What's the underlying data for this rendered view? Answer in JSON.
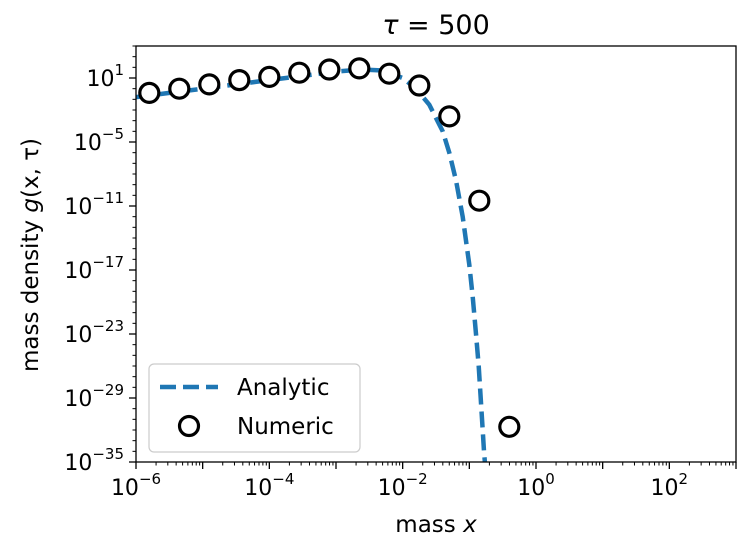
{
  "chart_data": {
    "type": "line",
    "title": {
      "symbol": "τ",
      "text": " = 500"
    },
    "xlabel": {
      "text": "mass ",
      "var": "x"
    },
    "ylabel": {
      "text": "mass density ",
      "func": "g",
      "args": "(x, τ)"
    },
    "xscale": "log",
    "yscale": "log",
    "xlim_log10": [
      -6,
      3
    ],
    "ylim_log10": [
      -35,
      4
    ],
    "x_ticks": [
      {
        "base": "10",
        "exp": "−6",
        "log10": -6
      },
      {
        "base": "10",
        "exp": "−4",
        "log10": -4
      },
      {
        "base": "10",
        "exp": "−2",
        "log10": -2
      },
      {
        "base": "10",
        "exp": "0",
        "log10": 0
      },
      {
        "base": "10",
        "exp": "2",
        "log10": 2
      }
    ],
    "y_ticks": [
      {
        "base": "10",
        "exp": "1",
        "log10": 1
      },
      {
        "base": "10",
        "exp": "−5",
        "log10": -5
      },
      {
        "base": "10",
        "exp": "−11",
        "log10": -11
      },
      {
        "base": "10",
        "exp": "−17",
        "log10": -17
      },
      {
        "base": "10",
        "exp": "−23",
        "log10": -23
      },
      {
        "base": "10",
        "exp": "−29",
        "log10": -29
      },
      {
        "base": "10",
        "exp": "−35",
        "log10": -35
      }
    ],
    "grid": false,
    "legend_position": "lower-left",
    "series": [
      {
        "name": "Analytic",
        "style": "dashed-line",
        "color": "#1f77b4",
        "log10_x": [
          -6.0,
          -5.5,
          -5.0,
          -4.5,
          -4.0,
          -3.5,
          -3.0,
          -2.6,
          -2.3,
          -2.0,
          -1.8,
          -1.6,
          -1.4,
          -1.3,
          -1.2,
          -1.1,
          -1.0,
          -0.95,
          -0.9,
          -0.86,
          -0.83,
          -0.8,
          -0.78,
          -0.76
        ],
        "log10_y": [
          -0.8,
          -0.4,
          0.0,
          0.4,
          0.8,
          1.2,
          1.6,
          1.8,
          1.7,
          1.0,
          0.0,
          -1.5,
          -4.0,
          -6.0,
          -8.6,
          -12.0,
          -16.5,
          -19.5,
          -23.0,
          -26.0,
          -29.0,
          -32.0,
          -34.0,
          -35.5
        ]
      },
      {
        "name": "Numeric",
        "style": "open-circle",
        "color": "#000000",
        "log10_x": [
          -5.8,
          -5.35,
          -4.9,
          -4.45,
          -4.0,
          -3.55,
          -3.1,
          -2.65,
          -2.2,
          -1.75,
          -1.3,
          -0.85,
          -0.4
        ],
        "log10_y": [
          -0.4,
          0.0,
          0.4,
          0.8,
          1.1,
          1.5,
          1.8,
          1.9,
          1.4,
          0.3,
          -2.6,
          -10.5,
          -31.7
        ]
      }
    ]
  }
}
